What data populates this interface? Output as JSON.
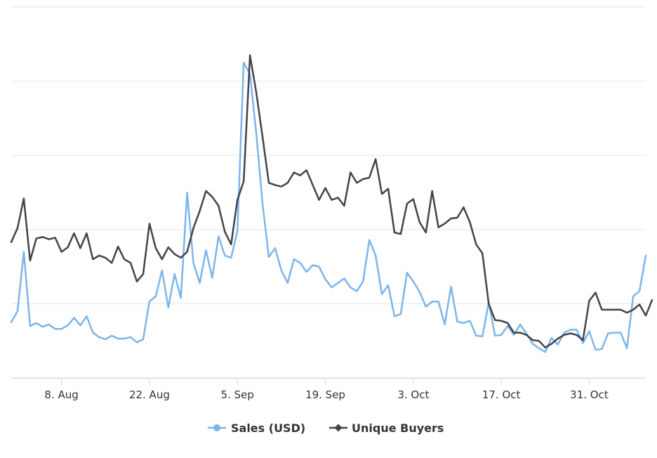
{
  "chart_data": {
    "type": "line",
    "title": "",
    "xlabel": "",
    "ylabel": "",
    "x_ticks": [
      "8. Aug",
      "22. Aug",
      "5. Sep",
      "19. Sep",
      "3. Oct",
      "17. Oct",
      "31. Oct"
    ],
    "grid": "horizontal",
    "y_axis_labels_shown": false,
    "ylim": [
      0,
      5
    ],
    "legend": {
      "placement": "bottom-center"
    },
    "series": [
      {
        "name": "Sales (USD)",
        "color": "#7cb5ec",
        "marker": "circle",
        "values": [
          0.75,
          0.9,
          1.7,
          0.7,
          0.74,
          0.69,
          0.72,
          0.66,
          0.66,
          0.71,
          0.81,
          0.71,
          0.83,
          0.61,
          0.55,
          0.52,
          0.57,
          0.53,
          0.53,
          0.55,
          0.48,
          0.52,
          1.03,
          1.1,
          1.45,
          0.95,
          1.4,
          1.08,
          2.5,
          1.55,
          1.28,
          1.72,
          1.35,
          1.91,
          1.65,
          1.62,
          1.98,
          4.25,
          4.1,
          3.3,
          2.35,
          1.63,
          1.75,
          1.45,
          1.28,
          1.6,
          1.55,
          1.43,
          1.52,
          1.5,
          1.33,
          1.22,
          1.28,
          1.34,
          1.22,
          1.17,
          1.3,
          1.86,
          1.65,
          1.13,
          1.25,
          0.83,
          0.86,
          1.42,
          1.3,
          1.16,
          0.96,
          1.03,
          1.03,
          0.72,
          1.23,
          0.76,
          0.74,
          0.77,
          0.57,
          0.56,
          1.02,
          0.57,
          0.58,
          0.7,
          0.58,
          0.72,
          0.6,
          0.46,
          0.4,
          0.35,
          0.54,
          0.45,
          0.61,
          0.65,
          0.65,
          0.47,
          0.63,
          0.38,
          0.39,
          0.6,
          0.61,
          0.61,
          0.4,
          1.1,
          1.17,
          1.65
        ]
      },
      {
        "name": "Unique Buyers",
        "color": "#434348",
        "marker": "diamond",
        "values": [
          1.83,
          2.02,
          2.42,
          1.58,
          1.88,
          1.9,
          1.87,
          1.89,
          1.7,
          1.76,
          1.95,
          1.75,
          1.95,
          1.6,
          1.65,
          1.62,
          1.55,
          1.77,
          1.6,
          1.55,
          1.3,
          1.4,
          2.08,
          1.75,
          1.6,
          1.76,
          1.67,
          1.62,
          1.7,
          2.02,
          2.25,
          2.52,
          2.44,
          2.32,
          1.97,
          1.8,
          2.4,
          2.65,
          4.35,
          3.85,
          3.25,
          2.63,
          2.6,
          2.58,
          2.63,
          2.77,
          2.73,
          2.8,
          2.6,
          2.4,
          2.56,
          2.4,
          2.43,
          2.32,
          2.77,
          2.63,
          2.68,
          2.7,
          2.95,
          2.48,
          2.55,
          1.96,
          1.94,
          2.35,
          2.41,
          2.1,
          1.96,
          2.52,
          2.03,
          2.08,
          2.15,
          2.16,
          2.3,
          2.1,
          1.8,
          1.68,
          1.0,
          0.78,
          0.77,
          0.74,
          0.61,
          0.61,
          0.58,
          0.51,
          0.5,
          0.41,
          0.46,
          0.53,
          0.58,
          0.6,
          0.58,
          0.51,
          1.04,
          1.15,
          0.92,
          0.92,
          0.92,
          0.92,
          0.88,
          0.92,
          0.99,
          0.84,
          1.05
        ]
      }
    ]
  }
}
